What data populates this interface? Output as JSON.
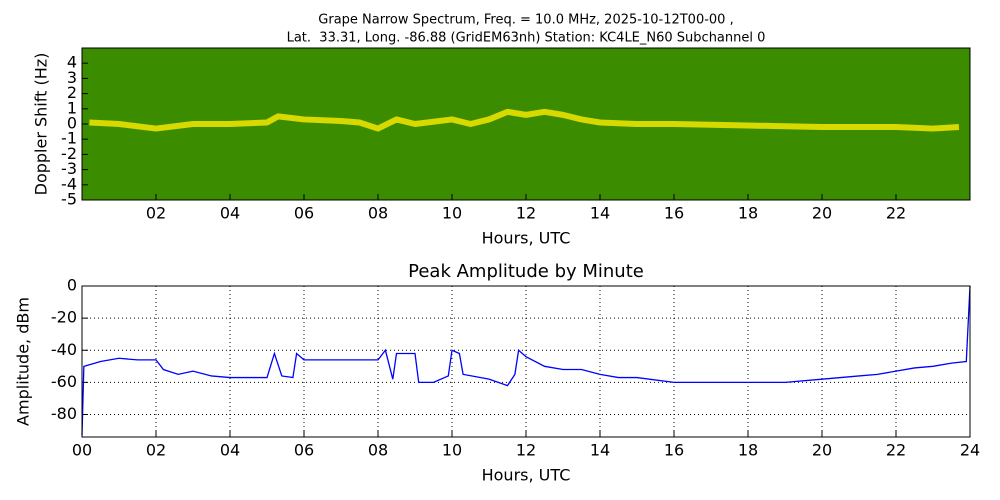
{
  "chart_data": [
    {
      "type": "spectrogram",
      "title": [
        "Grape Narrow Spectrum, Freq. = 10.0 MHz, 2025-10-12T00-00 ,",
        "Lat.  33.31, Long. -86.88 (GridEM63nh) Station: KC4LE_N60 Subchannel 0"
      ],
      "xlabel": "Hours, UTC",
      "ylabel": "Doppler Shift (Hz)",
      "xlim": [
        0,
        24
      ],
      "ylim": [
        -5,
        5
      ],
      "xticks": [
        {
          "value": 2,
          "label": "02"
        },
        {
          "value": 4,
          "label": "04"
        },
        {
          "value": 6,
          "label": "06"
        },
        {
          "value": 8,
          "label": "08"
        },
        {
          "value": 10,
          "label": "10"
        },
        {
          "value": 12,
          "label": "12"
        },
        {
          "value": 14,
          "label": "14"
        },
        {
          "value": 16,
          "label": "16"
        },
        {
          "value": 18,
          "label": "18"
        },
        {
          "value": 20,
          "label": "20"
        },
        {
          "value": 22,
          "label": "22"
        }
      ],
      "yticks": [
        -5,
        -4,
        -3,
        -2,
        -1,
        0,
        1,
        2,
        3,
        4
      ],
      "background": "#3c8c00",
      "grid": false,
      "series": [
        {
          "color": "#f2e600",
          "x": [
            0.2,
            1,
            2,
            3,
            4,
            5,
            5.3,
            6,
            7,
            7.5,
            8,
            8.5,
            9,
            10,
            10.5,
            11,
            11.5,
            12,
            12.5,
            13,
            13.5,
            14,
            15,
            16,
            18,
            20,
            22,
            23,
            23.7
          ],
          "values": [
            0.1,
            0,
            -0.3,
            0,
            0,
            0.1,
            0.5,
            0.3,
            0.2,
            0.1,
            -0.3,
            0.3,
            0,
            0.3,
            0,
            0.3,
            0.8,
            0.6,
            0.8,
            0.6,
            0.3,
            0.1,
            0,
            0,
            -0.1,
            -0.2,
            -0.2,
            -0.3,
            -0.2
          ]
        }
      ]
    },
    {
      "type": "line",
      "title": "Peak Amplitude by Minute",
      "xlabel": "Hours, UTC",
      "ylabel": "Amplitude, dBm",
      "xlim": [
        0,
        24
      ],
      "ylim": [
        -94,
        0
      ],
      "xticks": [
        {
          "value": 0,
          "label": "00"
        },
        {
          "value": 2,
          "label": "02"
        },
        {
          "value": 4,
          "label": "04"
        },
        {
          "value": 6,
          "label": "06"
        },
        {
          "value": 8,
          "label": "08"
        },
        {
          "value": 10,
          "label": "10"
        },
        12,
        14,
        16,
        18,
        20,
        22,
        24
      ],
      "yticks": [
        -80,
        -60,
        -40,
        -20,
        0
      ],
      "grid": true,
      "series": [
        {
          "color": "#0000ff",
          "x": [
            0,
            0.05,
            0.5,
            1,
            1.5,
            2,
            2.2,
            2.6,
            3,
            3.5,
            4,
            4.5,
            5,
            5.2,
            5.4,
            5.7,
            5.8,
            6,
            7,
            8,
            8.2,
            8.4,
            8.5,
            9,
            9.1,
            9.5,
            9.9,
            10,
            10.2,
            10.3,
            11,
            11.5,
            11.7,
            11.8,
            12,
            12.5,
            13,
            13.5,
            14,
            14.5,
            15,
            16,
            17,
            18,
            19,
            20,
            21,
            21.5,
            22,
            22.5,
            23,
            23.5,
            23.9,
            24
          ],
          "values": [
            -93,
            -50,
            -47,
            -45,
            -46,
            -46,
            -52,
            -55,
            -53,
            -56,
            -57,
            -57,
            -57,
            -42,
            -56,
            -57,
            -42,
            -46,
            -46,
            -46,
            -40,
            -58,
            -42,
            -42,
            -60,
            -60,
            -56,
            -40,
            -42,
            -55,
            -58,
            -62,
            -55,
            -40,
            -44,
            -50,
            -52,
            -52,
            -55,
            -57,
            -57,
            -60,
            -60,
            -60,
            -60,
            -58,
            -56,
            -55,
            -53,
            -51,
            -50,
            -48,
            -47,
            0
          ]
        }
      ]
    }
  ]
}
